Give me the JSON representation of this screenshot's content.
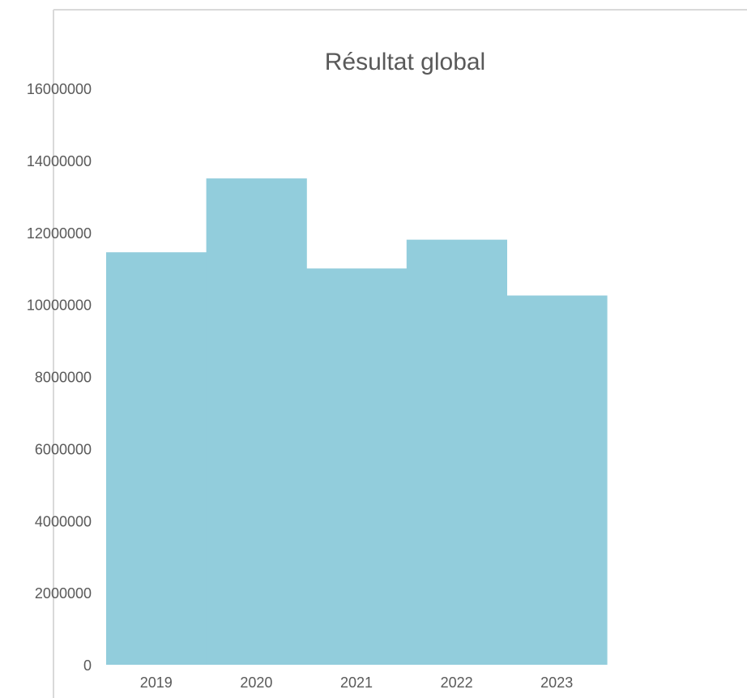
{
  "chart_data": {
    "type": "bar",
    "title": "Résultat global",
    "xlabel": "",
    "ylabel": "",
    "categories": [
      "2019",
      "2020",
      "2021",
      "2022",
      "2023"
    ],
    "series": [
      {
        "values": [
          11450000,
          13500000,
          11000000,
          11800000,
          10250000
        ]
      }
    ],
    "ylim": [
      0,
      16000000
    ],
    "yticks": [
      "0",
      "2000000",
      "4000000",
      "6000000",
      "8000000",
      "10000000",
      "12000000",
      "14000000",
      "16000000"
    ],
    "grid": false,
    "legend": "none",
    "colors": {
      "bar": "#92CDDC",
      "text": "#595959",
      "frame": "#D9D9D9"
    }
  }
}
